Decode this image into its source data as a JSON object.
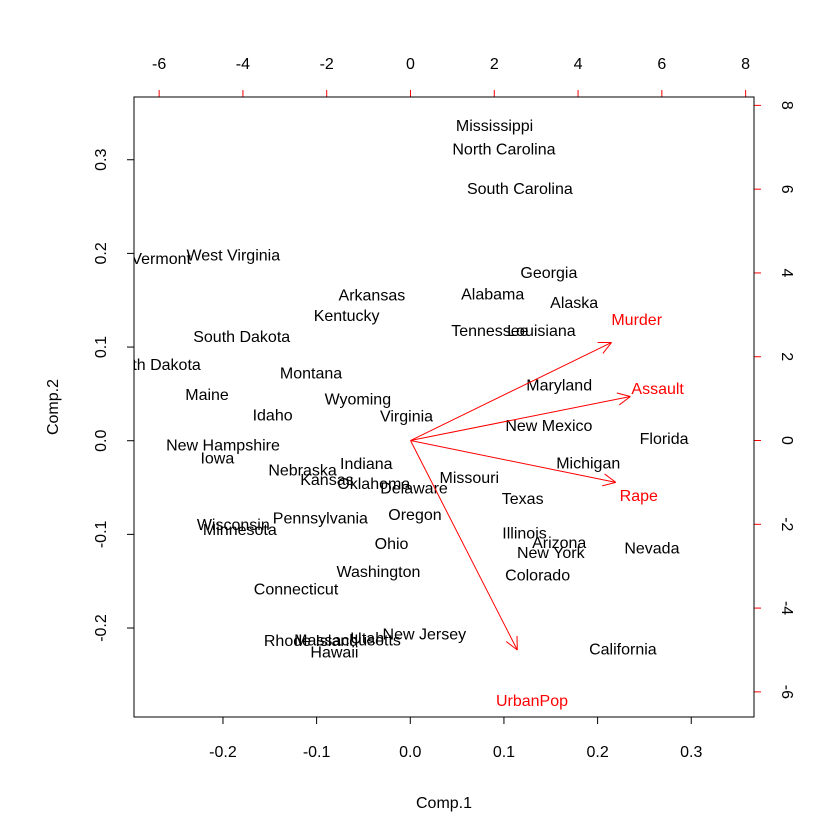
{
  "chart_data": {
    "type": "scatter",
    "subtype": "biplot",
    "title": "",
    "xlabel": "Comp.1",
    "ylabel": "Comp.2",
    "xlim": [
      -0.295,
      0.367
    ],
    "ylim": [
      -0.295,
      0.367
    ],
    "top_xlim": [
      -6.6,
      8.2
    ],
    "right_ylim": [
      -6.6,
      8.2
    ],
    "grid": false,
    "colors": {
      "points": "#000000",
      "arrows": "#ff0000",
      "top_right_axis": "#ff0000"
    },
    "x_ticks": [
      {
        "value": -0.2,
        "label": "-0.2"
      },
      {
        "value": -0.1,
        "label": "-0.1"
      },
      {
        "value": 0.0,
        "label": "0.0"
      },
      {
        "value": 0.1,
        "label": "0.1"
      },
      {
        "value": 0.2,
        "label": "0.2"
      },
      {
        "value": 0.3,
        "label": "0.3"
      }
    ],
    "y_ticks": [
      {
        "value": -0.2,
        "label": "-0.2"
      },
      {
        "value": -0.1,
        "label": "-0.1"
      },
      {
        "value": 0.0,
        "label": "0.0"
      },
      {
        "value": 0.1,
        "label": "0.1"
      },
      {
        "value": 0.2,
        "label": "0.2"
      },
      {
        "value": 0.3,
        "label": "0.3"
      }
    ],
    "top_ticks": [
      {
        "value": -6,
        "label": "-6"
      },
      {
        "value": -4,
        "label": "-4"
      },
      {
        "value": -2,
        "label": "-2"
      },
      {
        "value": 0,
        "label": "0"
      },
      {
        "value": 2,
        "label": "2"
      },
      {
        "value": 4,
        "label": "4"
      },
      {
        "value": 6,
        "label": "6"
      },
      {
        "value": 8,
        "label": "8"
      }
    ],
    "right_ticks": [
      {
        "value": -6,
        "label": "-6"
      },
      {
        "value": -4,
        "label": "-4"
      },
      {
        "value": -2,
        "label": "-2"
      },
      {
        "value": 0,
        "label": "0"
      },
      {
        "value": 2,
        "label": "2"
      },
      {
        "value": 4,
        "label": "4"
      },
      {
        "value": 6,
        "label": "6"
      },
      {
        "value": 8,
        "label": "8"
      }
    ],
    "points": [
      {
        "label": "Mississippi",
        "x": 0.09,
        "y": 0.337
      },
      {
        "label": "North Carolina",
        "x": 0.1,
        "y": 0.312
      },
      {
        "label": "South Carolina",
        "x": 0.117,
        "y": 0.27
      },
      {
        "label": "West Virginia",
        "x": -0.189,
        "y": 0.199
      },
      {
        "label": "Vermont",
        "x": -0.266,
        "y": 0.195
      },
      {
        "label": "Georgia",
        "x": 0.148,
        "y": 0.18
      },
      {
        "label": "Arkansas",
        "x": -0.041,
        "y": 0.156
      },
      {
        "label": "Alabama",
        "x": 0.088,
        "y": 0.157
      },
      {
        "label": "Alaska",
        "x": 0.175,
        "y": 0.148
      },
      {
        "label": "Kentucky",
        "x": -0.068,
        "y": 0.134
      },
      {
        "label": "South Dakota",
        "x": -0.18,
        "y": 0.112
      },
      {
        "label": "Tennessee",
        "x": 0.085,
        "y": 0.118
      },
      {
        "label": "Louisiana",
        "x": 0.14,
        "y": 0.118
      },
      {
        "label": "North Dakota",
        "x": -0.274,
        "y": 0.082
      },
      {
        "label": "Montana",
        "x": -0.106,
        "y": 0.073
      },
      {
        "label": "Maryland",
        "x": 0.159,
        "y": 0.06
      },
      {
        "label": "Maine",
        "x": -0.217,
        "y": 0.05
      },
      {
        "label": "Wyoming",
        "x": -0.056,
        "y": 0.045
      },
      {
        "label": "Idaho",
        "x": -0.147,
        "y": 0.028
      },
      {
        "label": "Virginia",
        "x": -0.004,
        "y": 0.027
      },
      {
        "label": "New Mexico",
        "x": 0.148,
        "y": 0.017
      },
      {
        "label": "Florida",
        "x": 0.271,
        "y": 0.003
      },
      {
        "label": "New Hampshire",
        "x": -0.2,
        "y": -0.004
      },
      {
        "label": "Iowa",
        "x": -0.206,
        "y": -0.018
      },
      {
        "label": "Indiana",
        "x": -0.047,
        "y": -0.024
      },
      {
        "label": "Michigan",
        "x": 0.19,
        "y": -0.023
      },
      {
        "label": "Nebraska",
        "x": -0.115,
        "y": -0.031
      },
      {
        "label": "Kansas",
        "x": -0.089,
        "y": -0.041
      },
      {
        "label": "Oklahoma",
        "x": -0.039,
        "y": -0.045
      },
      {
        "label": "Missouri",
        "x": 0.063,
        "y": -0.039
      },
      {
        "label": "Delaware",
        "x": 0.004,
        "y": -0.05
      },
      {
        "label": "Texas",
        "x": 0.12,
        "y": -0.061
      },
      {
        "label": "Oregon",
        "x": 0.005,
        "y": -0.078
      },
      {
        "label": "Pennsylvania",
        "x": -0.096,
        "y": -0.082
      },
      {
        "label": "Wisconsin",
        "x": -0.189,
        "y": -0.089
      },
      {
        "label": "Minnesota",
        "x": -0.182,
        "y": -0.094
      },
      {
        "label": "Illinois",
        "x": 0.122,
        "y": -0.098
      },
      {
        "label": "Arizona",
        "x": 0.159,
        "y": -0.108
      },
      {
        "label": "Ohio",
        "x": -0.02,
        "y": -0.109
      },
      {
        "label": "New York",
        "x": 0.15,
        "y": -0.119
      },
      {
        "label": "Nevada",
        "x": 0.258,
        "y": -0.114
      },
      {
        "label": "Washington",
        "x": -0.034,
        "y": -0.139
      },
      {
        "label": "Colorado",
        "x": 0.136,
        "y": -0.143
      },
      {
        "label": "Connecticut",
        "x": -0.122,
        "y": -0.158
      },
      {
        "label": "New Jersey",
        "x": 0.015,
        "y": -0.206
      },
      {
        "label": "Rhode Island",
        "x": -0.106,
        "y": -0.213
      },
      {
        "label": "Massachusetts",
        "x": -0.067,
        "y": -0.212
      },
      {
        "label": "Utah",
        "x": -0.046,
        "y": -0.21
      },
      {
        "label": "Hawaii",
        "x": -0.081,
        "y": -0.225
      },
      {
        "label": "California",
        "x": 0.227,
        "y": -0.222
      }
    ],
    "loadings": [
      {
        "label": "Murder",
        "x": 4.8,
        "y": 2.34,
        "label_x": 5.4,
        "label_y": 2.9
      },
      {
        "label": "Assault",
        "x": 5.25,
        "y": 1.05,
        "label_x": 5.9,
        "label_y": 1.25
      },
      {
        "label": "UrbanPop",
        "x": 2.55,
        "y": -5.0,
        "label_x": 2.9,
        "label_y": -6.2
      },
      {
        "label": "Rape",
        "x": 4.9,
        "y": -1.0,
        "label_x": 5.45,
        "label_y": -1.3
      }
    ]
  }
}
